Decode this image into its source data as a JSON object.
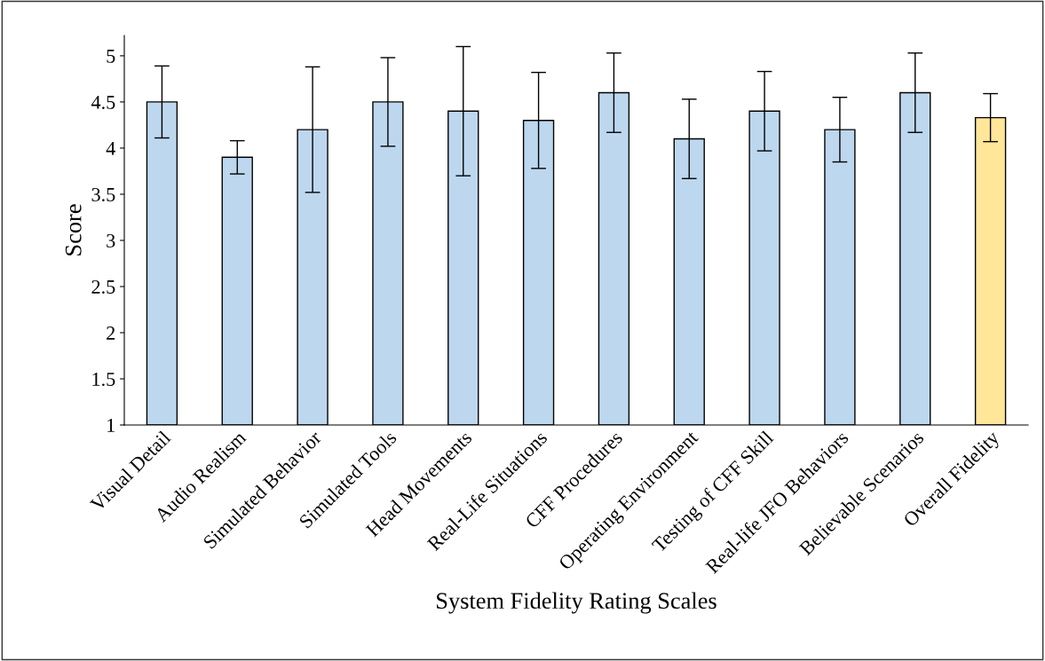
{
  "chart_data": {
    "type": "bar",
    "xlabel": "System Fidelity Rating Scales",
    "ylabel": "Score",
    "categories": [
      "Visual Detail",
      "Audio Realism",
      "Simulated Behavior",
      "Simulated Tools",
      "Head Movements",
      "Real-Life Situations",
      "CFF Procedures",
      "Operating Environment",
      "Testing of CFF Skill",
      "Real-life JFO Behaviors",
      "Believable Scenarios",
      "Overall Fidelity"
    ],
    "values": [
      4.5,
      3.9,
      4.2,
      4.5,
      4.4,
      4.3,
      4.6,
      4.1,
      4.4,
      4.2,
      4.6,
      4.33
    ],
    "errors": [
      0.39,
      0.18,
      0.68,
      0.48,
      0.7,
      0.52,
      0.43,
      0.43,
      0.43,
      0.35,
      0.43,
      0.26
    ],
    "colors": [
      "#bdd7ee",
      "#bdd7ee",
      "#bdd7ee",
      "#bdd7ee",
      "#bdd7ee",
      "#bdd7ee",
      "#bdd7ee",
      "#bdd7ee",
      "#bdd7ee",
      "#bdd7ee",
      "#bdd7ee",
      "#ffe699"
    ],
    "ylim": [
      1,
      5.22
    ],
    "yticks": [
      1,
      1.5,
      2,
      2.5,
      3,
      3.5,
      4,
      4.5,
      5
    ],
    "grid": false,
    "legend": false
  }
}
